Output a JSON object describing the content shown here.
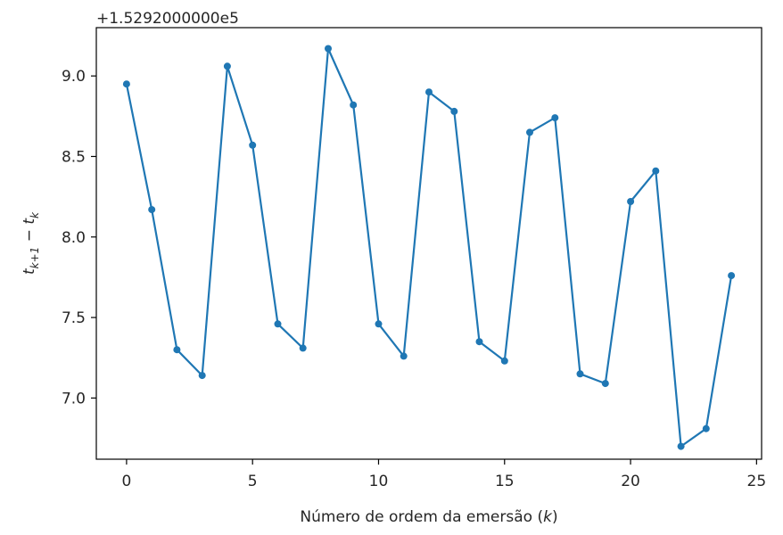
{
  "chart_data": {
    "type": "line",
    "title": "",
    "offset_text": "+1.5292000000e5",
    "xlabel": "Número de ordem da emersão (k)",
    "xlabel_parts": {
      "prefix": "Número de ordem da emersão (",
      "var": "k",
      "suffix": ")"
    },
    "ylabel_parts": {
      "t": "t",
      "sub1": "k+1",
      "minus": " − ",
      "sub2": "k"
    },
    "xlim": [
      -1.2,
      25.2
    ],
    "ylim": [
      6.62,
      9.3
    ],
    "xticks": [
      0,
      5,
      10,
      15,
      20,
      25
    ],
    "yticks": [
      7.0,
      7.5,
      8.0,
      8.5,
      9.0
    ],
    "ytick_labels": [
      "7.0",
      "7.5",
      "8.0",
      "8.5",
      "9.0"
    ],
    "grid": false,
    "color": "#1f77b4",
    "series": [
      {
        "x": [
          0,
          1,
          2,
          3,
          4,
          5,
          6,
          7,
          8,
          9,
          10,
          11,
          12,
          13,
          14,
          15,
          16,
          17,
          18,
          19,
          20,
          21,
          22,
          23,
          24
        ],
        "y": [
          8.95,
          8.17,
          7.3,
          7.14,
          9.06,
          8.57,
          7.46,
          7.31,
          9.17,
          8.82,
          7.46,
          7.26,
          8.9,
          8.78,
          7.35,
          7.23,
          8.65,
          8.74,
          7.15,
          7.09,
          8.22,
          8.41,
          6.7,
          6.81,
          7.76
        ]
      }
    ]
  }
}
